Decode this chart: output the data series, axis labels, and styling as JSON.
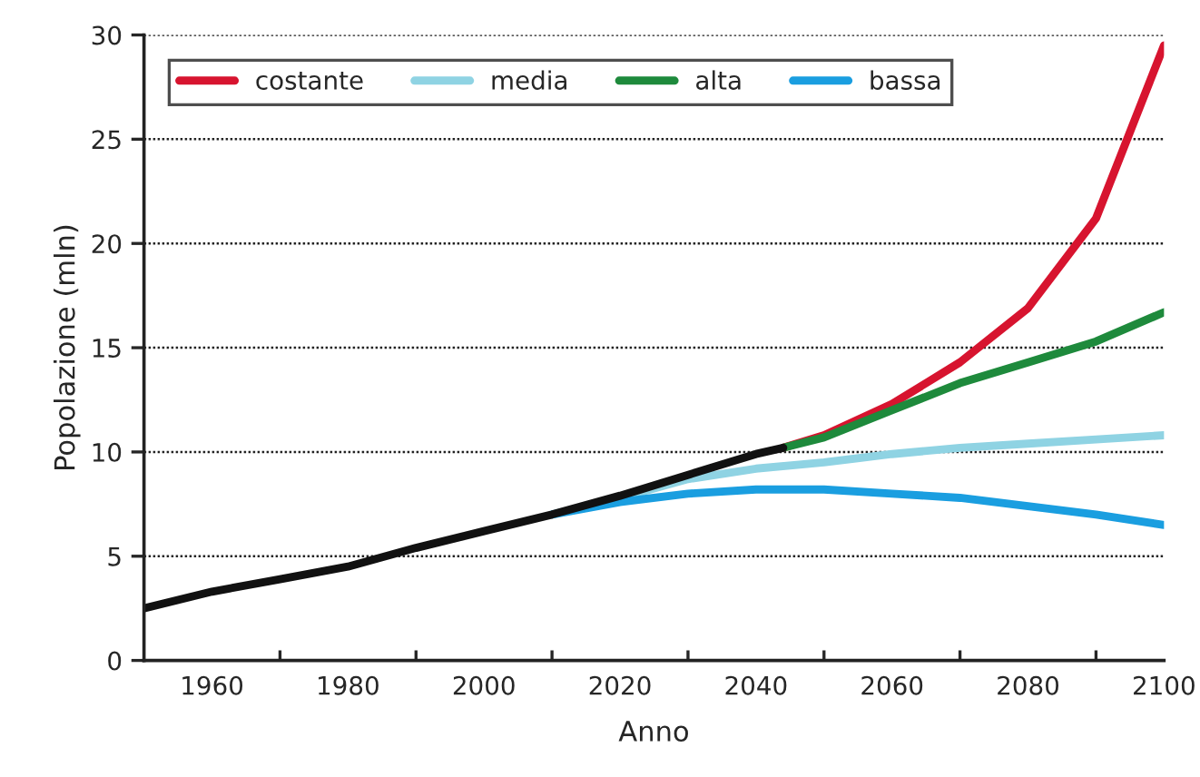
{
  "chart_data": {
    "type": "line",
    "xlabel": "Anno",
    "ylabel": "Popolazione (mln)",
    "xlim": [
      1950,
      2100
    ],
    "xticks": [
      {
        "value": 1960,
        "label": "1960"
      },
      {
        "value": 1970,
        "label": null
      },
      {
        "value": 1980,
        "label": "1980"
      },
      {
        "value": 1990,
        "label": null
      },
      {
        "value": 2000,
        "label": "2000"
      },
      {
        "value": 2010,
        "label": null
      },
      {
        "value": 2020,
        "label": "2020"
      },
      {
        "value": 2030,
        "label": null
      },
      {
        "value": 2040,
        "label": "2040"
      },
      {
        "value": 2050,
        "label": null
      },
      {
        "value": 2060,
        "label": "2060"
      },
      {
        "value": 2070,
        "label": null
      },
      {
        "value": 2080,
        "label": "2080"
      },
      {
        "value": 2090,
        "label": null
      },
      {
        "value": 2100,
        "label": "2100"
      }
    ],
    "ylim": [
      0,
      30
    ],
    "yticks": [
      0,
      5,
      10,
      15,
      20,
      25,
      30
    ],
    "grid": "y",
    "legend": "top left",
    "line_style": "solid",
    "series": [
      {
        "name": "costante",
        "color": "#d7142f",
        "x": [
          2044,
          2050,
          2060,
          2070,
          2080,
          2090,
          2100
        ],
        "values": [
          10.2,
          10.8,
          12.3,
          14.3,
          16.9,
          21.2,
          29.5
        ]
      },
      {
        "name": "media",
        "color": "#8fd3e3",
        "x": [
          2010,
          2020,
          2030,
          2040,
          2050,
          2060,
          2070,
          2080,
          2090,
          2100
        ],
        "values": [
          7.0,
          7.8,
          8.7,
          9.2,
          9.5,
          9.9,
          10.2,
          10.4,
          10.6,
          10.8
        ]
      },
      {
        "name": "alta",
        "color": "#1e8a3c",
        "x": [
          2044,
          2050,
          2060,
          2070,
          2080,
          2090,
          2100
        ],
        "values": [
          10.2,
          10.7,
          12.0,
          13.3,
          14.3,
          15.3,
          16.7
        ]
      },
      {
        "name": "bassa",
        "color": "#1a9ee0",
        "x": [
          2010,
          2020,
          2030,
          2040,
          2050,
          2060,
          2070,
          2080,
          2090,
          2100
        ],
        "values": [
          7.0,
          7.6,
          8.0,
          8.2,
          8.2,
          8.0,
          7.8,
          7.4,
          7.0,
          6.5
        ]
      },
      {
        "color": "#111111",
        "x": [
          1950,
          1960,
          1970,
          1980,
          1990,
          2000,
          2010,
          2020,
          2030,
          2040,
          2044
        ],
        "values": [
          2.5,
          3.3,
          3.9,
          4.5,
          5.4,
          6.2,
          7.0,
          7.9,
          8.9,
          9.9,
          10.2
        ]
      }
    ]
  }
}
